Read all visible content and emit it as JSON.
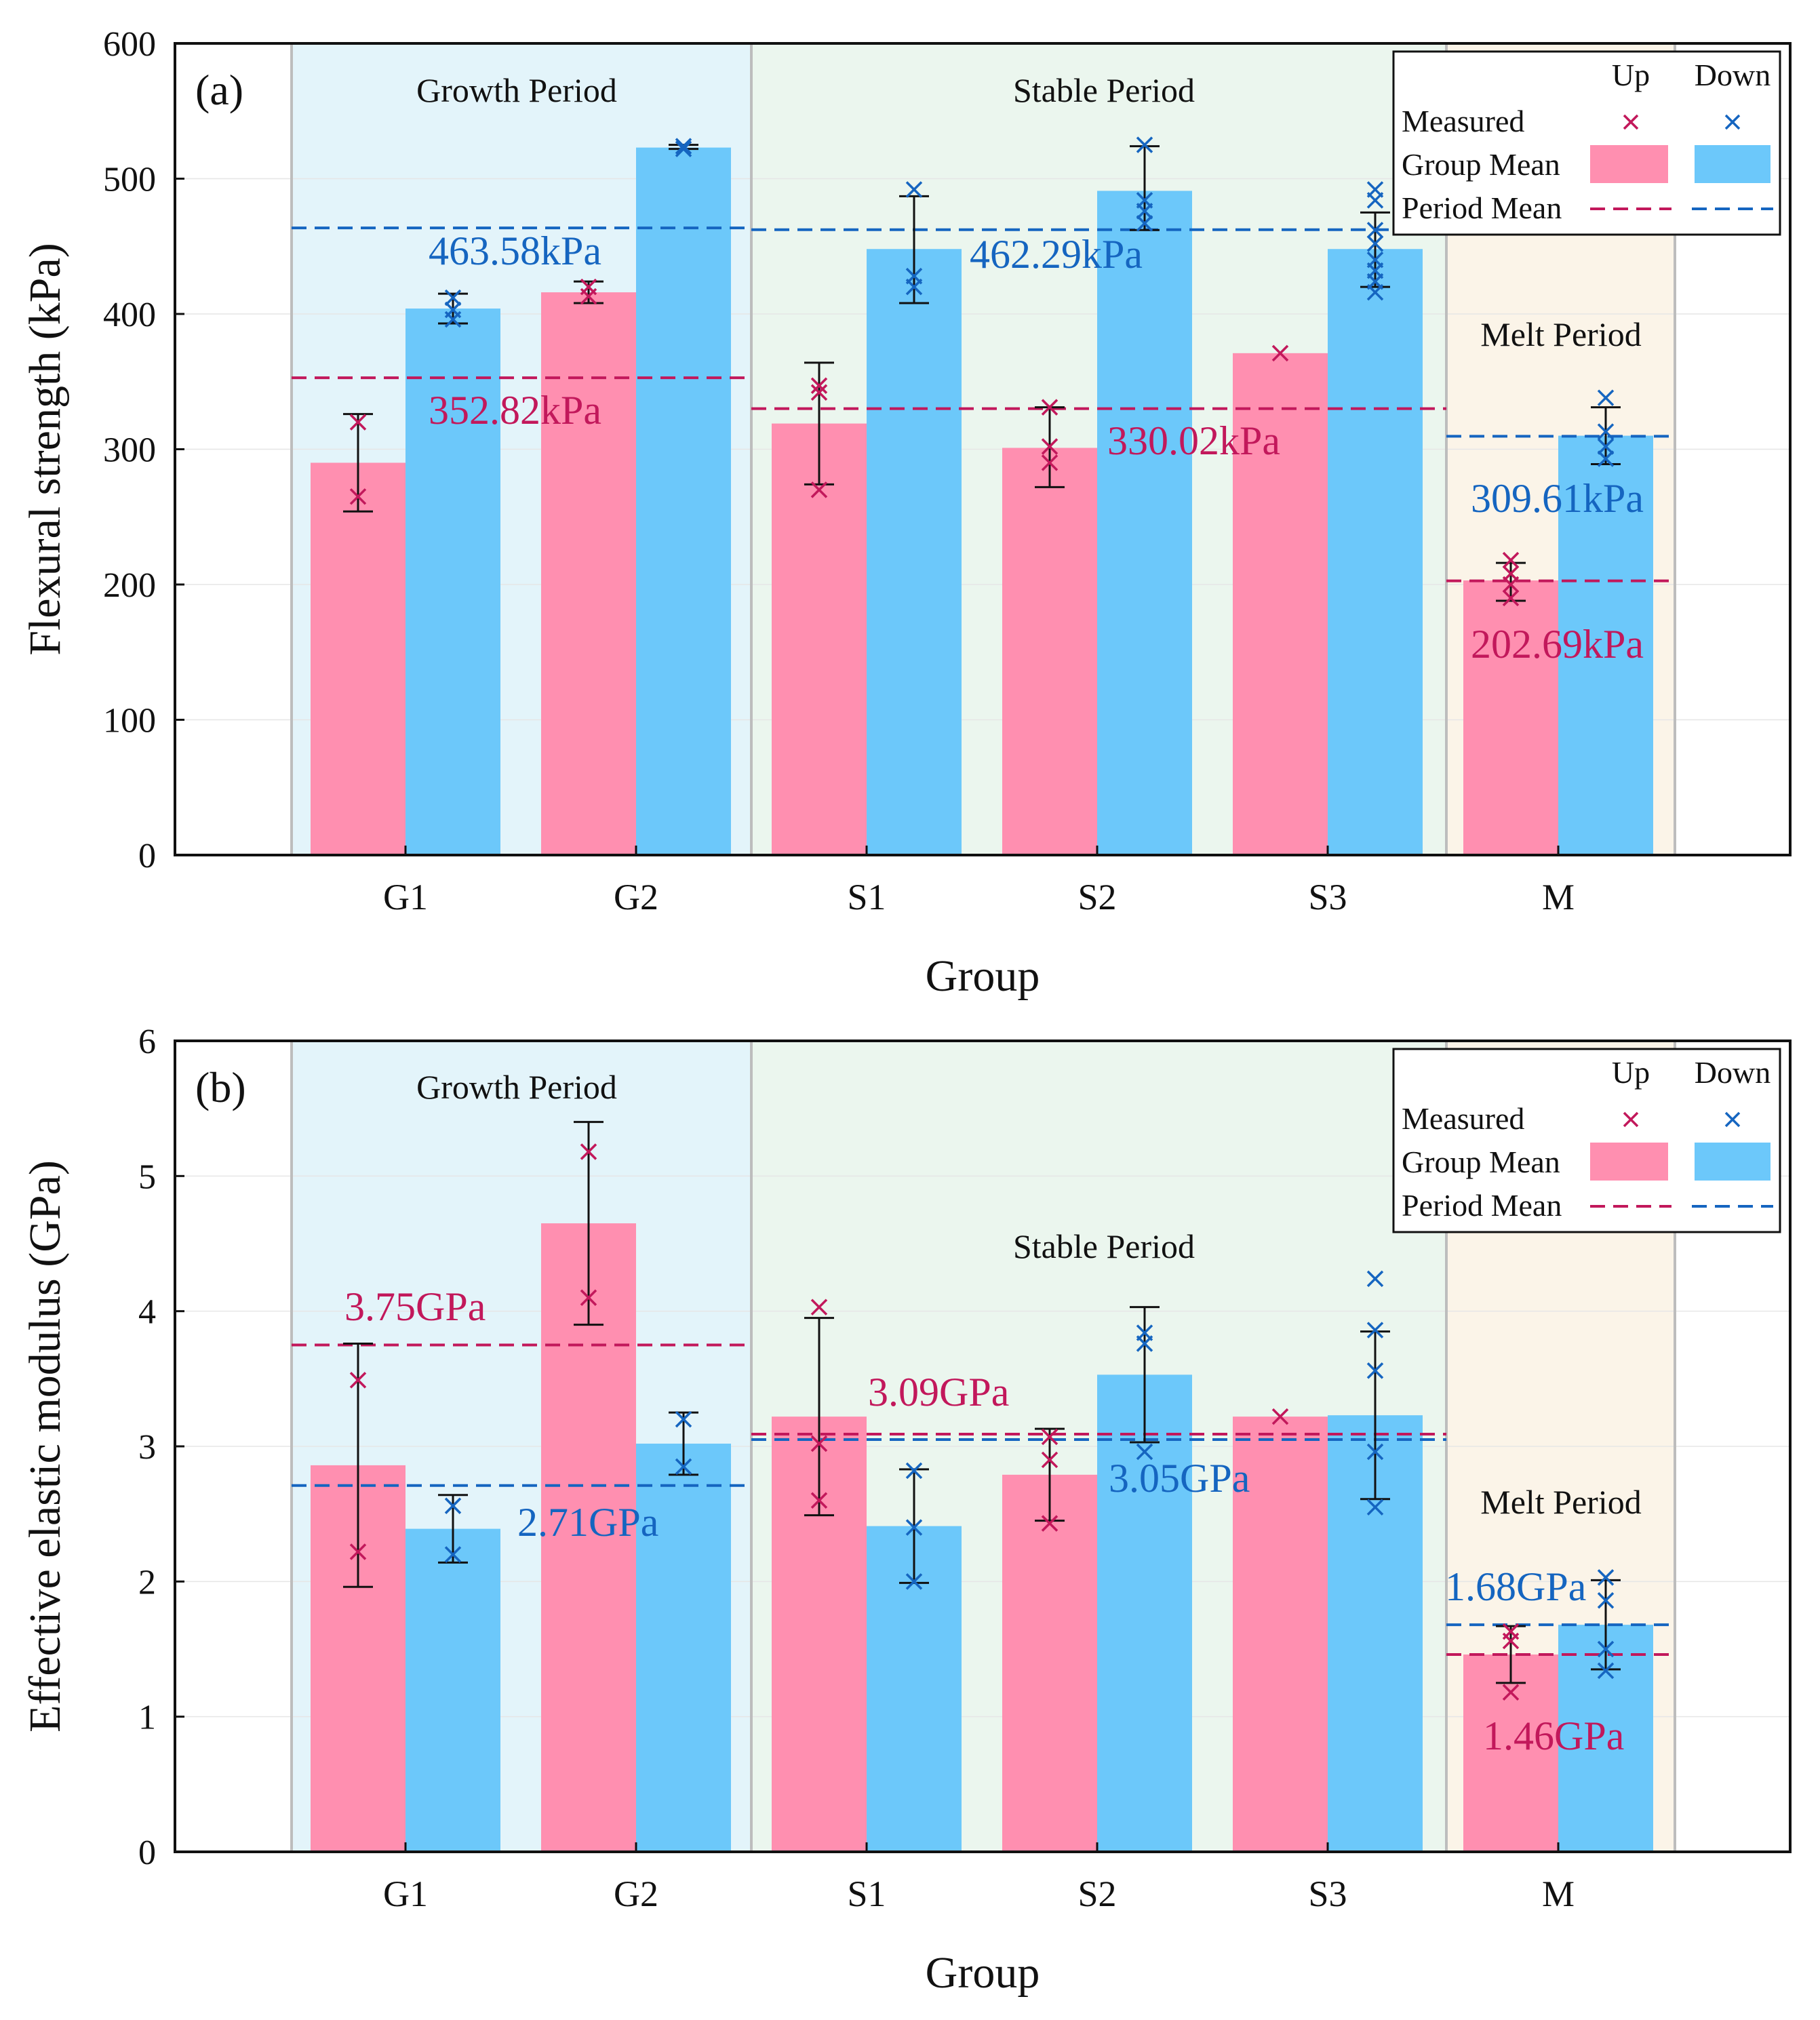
{
  "colors": {
    "up": "#FF8FB0",
    "down": "#6CC8FA",
    "up_marker": "#C2185B",
    "down_marker": "#1565C0",
    "growth_bg": "#E3F4FA",
    "stable_bg": "#EBF6EE",
    "melt_bg": "#FBF4E8",
    "period_border": "#BDBDBD",
    "grid": "#E6E6E6"
  },
  "chart_data": [
    {
      "type": "bar",
      "panel_label": "(a)",
      "xlabel": "Group",
      "ylabel": "Flexural strength (kPa)",
      "ylim": [
        0,
        600
      ],
      "yticks": [
        "0",
        "100",
        "200",
        "300",
        "400",
        "500",
        "600"
      ],
      "categories": [
        "G1",
        "G2",
        "S1",
        "S2",
        "S3",
        "M"
      ],
      "periods": [
        {
          "name": "Growth Period",
          "groups": [
            "G1",
            "G2"
          ]
        },
        {
          "name": "Stable Period",
          "groups": [
            "S1",
            "S2",
            "S3"
          ]
        },
        {
          "name": "Melt Period",
          "groups": [
            "M"
          ]
        }
      ],
      "series": [
        {
          "name": "Up",
          "values": [
            290,
            416,
            319,
            301,
            371,
            203
          ],
          "error_low": [
            254,
            408,
            274,
            272,
            null,
            188
          ],
          "error_high": [
            326,
            424,
            364,
            331,
            null,
            216
          ],
          "measured": [
            [
              265,
              320
            ],
            [
              413,
              420
            ],
            [
              270,
              342,
              347
            ],
            [
              290,
              302,
              331
            ],
            [
              371
            ],
            [
              190,
              200,
              208,
              218
            ]
          ]
        },
        {
          "name": "Down",
          "values": [
            404,
            523,
            448,
            491,
            448,
            310
          ],
          "error_low": [
            393,
            522,
            408,
            462,
            420,
            289
          ],
          "error_high": [
            415,
            525,
            487,
            524,
            475,
            331
          ],
          "measured": [
            [
              396,
              403,
              412
            ],
            [
              522,
              524
            ],
            [
              420,
              428,
              492
            ],
            [
              467,
              476,
              484,
              525
            ],
            [
              416,
              424,
              432,
              440,
              452,
              462,
              484,
              492
            ],
            [
              293,
              302,
              313,
              338
            ]
          ]
        }
      ],
      "period_means": [
        {
          "series": "Up",
          "period": "Growth Period",
          "value": 352.82,
          "label": "352.82kPa"
        },
        {
          "series": "Down",
          "period": "Growth Period",
          "value": 463.58,
          "label": "463.58kPa"
        },
        {
          "series": "Up",
          "period": "Stable Period",
          "value": 330.02,
          "label": "330.02kPa"
        },
        {
          "series": "Down",
          "period": "Stable Period",
          "value": 462.29,
          "label": "462.29kPa"
        },
        {
          "series": "Up",
          "period": "Melt Period",
          "value": 202.69,
          "label": "202.69kPa"
        },
        {
          "series": "Down",
          "period": "Melt Period",
          "value": 309.61,
          "label": "309.61kPa"
        }
      ],
      "legend": {
        "position": "top-right",
        "columns": [
          "Up",
          "Down"
        ],
        "rows": [
          "Measured",
          "Group Mean",
          "Period Mean"
        ]
      }
    },
    {
      "type": "bar",
      "panel_label": "(b)",
      "xlabel": "Group",
      "ylabel": "Effective elastic modulus (GPa)",
      "ylim": [
        0,
        6
      ],
      "yticks": [
        "0",
        "1",
        "2",
        "3",
        "4",
        "5",
        "6"
      ],
      "categories": [
        "G1",
        "G2",
        "S1",
        "S2",
        "S3",
        "M"
      ],
      "periods": [
        {
          "name": "Growth Period",
          "groups": [
            "G1",
            "G2"
          ]
        },
        {
          "name": "Stable Period",
          "groups": [
            "S1",
            "S2",
            "S3"
          ]
        },
        {
          "name": "Melt Period",
          "groups": [
            "M"
          ]
        }
      ],
      "series": [
        {
          "name": "Up",
          "values": [
            2.86,
            4.65,
            3.22,
            2.79,
            3.22,
            1.46
          ],
          "error_low": [
            1.96,
            3.9,
            2.49,
            2.45,
            null,
            1.25
          ],
          "error_high": [
            3.76,
            5.4,
            3.95,
            3.13,
            null,
            1.67
          ],
          "measured": [
            [
              2.22,
              3.49
            ],
            [
              4.1,
              5.18
            ],
            [
              2.6,
              3.02,
              4.03
            ],
            [
              2.43,
              2.9,
              3.07
            ],
            [
              3.22
            ],
            [
              1.18,
              1.56,
              1.63
            ]
          ]
        },
        {
          "name": "Down",
          "values": [
            2.39,
            3.02,
            2.41,
            3.53,
            3.23,
            1.68
          ],
          "error_low": [
            2.14,
            2.79,
            1.99,
            3.03,
            2.61,
            1.35
          ],
          "error_high": [
            2.64,
            3.25,
            2.83,
            4.03,
            3.85,
            2.01
          ],
          "measured": [
            [
              2.2,
              2.56
            ],
            [
              2.85,
              3.2
            ],
            [
              2.0,
              2.4,
              2.82
            ],
            [
              2.96,
              3.76,
              3.84
            ],
            [
              2.55,
              2.96,
              3.56,
              3.86,
              4.24
            ],
            [
              1.34,
              1.5,
              1.86,
              2.03
            ]
          ]
        }
      ],
      "period_means": [
        {
          "series": "Up",
          "period": "Growth Period",
          "value": 3.75,
          "label": "3.75GPa"
        },
        {
          "series": "Down",
          "period": "Growth Period",
          "value": 2.71,
          "label": "2.71GPa"
        },
        {
          "series": "Up",
          "period": "Stable Period",
          "value": 3.09,
          "label": "3.09GPa"
        },
        {
          "series": "Down",
          "period": "Stable Period",
          "value": 3.05,
          "label": "3.05GPa"
        },
        {
          "series": "Up",
          "period": "Melt Period",
          "value": 1.46,
          "label": "1.46GPa"
        },
        {
          "series": "Down",
          "period": "Melt Period",
          "value": 1.68,
          "label": "1.68GPa"
        }
      ],
      "legend": {
        "position": "top-right",
        "columns": [
          "Up",
          "Down"
        ],
        "rows": [
          "Measured",
          "Group Mean",
          "Period Mean"
        ]
      }
    }
  ]
}
